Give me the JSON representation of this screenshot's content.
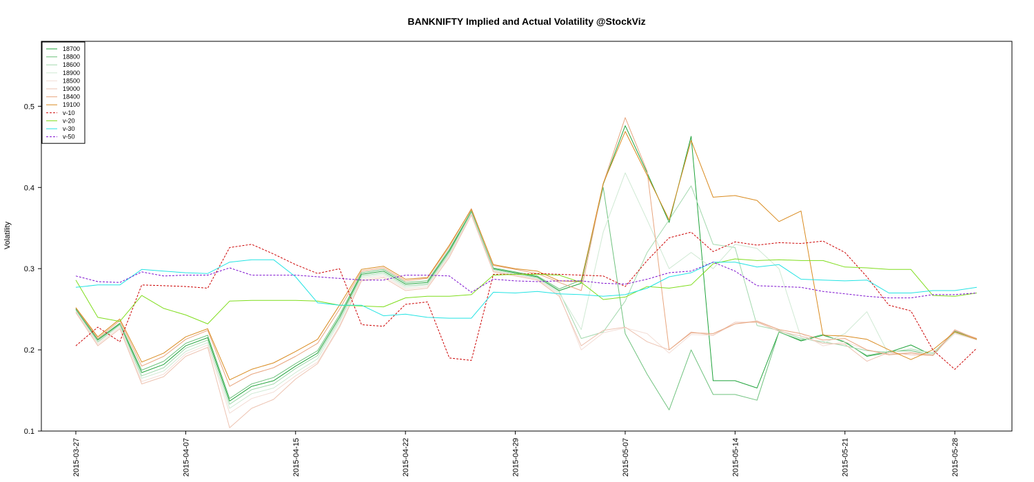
{
  "chart_data": {
    "type": "line",
    "title": "BANKNIFTY Implied and Actual Volatility @StockViz",
    "xlabel": "",
    "ylabel": "Volatility",
    "ylim": [
      0.1,
      0.58
    ],
    "yticks": [
      0.1,
      0.2,
      0.3,
      0.4,
      0.5
    ],
    "legend_position": "top-left",
    "grid": false,
    "x": [
      "2015-03-27",
      "2015-03-30",
      "2015-03-31",
      "2015-04-01",
      "2015-04-06",
      "2015-04-07",
      "2015-04-08",
      "2015-04-09",
      "2015-04-10",
      "2015-04-13",
      "2015-04-15",
      "2015-04-16",
      "2015-04-17",
      "2015-04-20",
      "2015-04-21",
      "2015-04-22",
      "2015-04-23",
      "2015-04-24",
      "2015-04-27",
      "2015-04-28",
      "2015-04-29",
      "2015-04-30",
      "2015-05-04",
      "2015-05-05",
      "2015-05-06",
      "2015-05-07",
      "2015-05-08",
      "2015-05-11",
      "2015-05-12",
      "2015-05-13",
      "2015-05-14",
      "2015-05-15",
      "2015-05-18",
      "2015-05-19",
      "2015-05-20",
      "2015-05-21",
      "2015-05-22",
      "2015-05-25",
      "2015-05-26",
      "2015-05-27",
      "2015-05-28",
      "2015-05-29"
    ],
    "xticks": [
      "2015-03-27",
      "2015-04-07",
      "2015-04-15",
      "2015-04-22",
      "2015-04-29",
      "2015-05-07",
      "2015-05-14",
      "2015-05-21",
      "2015-05-28"
    ],
    "series": [
      {
        "name": "18700",
        "color": "#1fa33a",
        "dash": false,
        "values": [
          0.25,
          0.212,
          0.232,
          0.172,
          0.182,
          0.205,
          0.215,
          0.137,
          0.155,
          0.162,
          0.18,
          0.196,
          0.24,
          0.293,
          0.297,
          0.281,
          0.283,
          0.322,
          0.37,
          0.3,
          0.295,
          0.29,
          0.273,
          0.282,
          0.404,
          0.476,
          0.418,
          0.357,
          0.463,
          0.162,
          0.162,
          0.153,
          0.222,
          0.211,
          0.218,
          0.21,
          0.192,
          0.197,
          0.206,
          0.193,
          0.222,
          0.213
        ]
      },
      {
        "name": "18800",
        "color": "#6fc27e",
        "dash": false,
        "values": [
          0.251,
          0.213,
          0.233,
          0.175,
          0.186,
          0.208,
          0.218,
          0.14,
          0.158,
          0.166,
          0.183,
          0.199,
          0.243,
          0.295,
          0.299,
          0.283,
          0.285,
          0.324,
          0.371,
          0.301,
          0.296,
          0.291,
          0.275,
          0.286,
          0.4,
          0.22,
          0.17,
          0.126,
          0.2,
          0.145,
          0.145,
          0.138,
          0.222,
          0.212,
          0.219,
          0.209,
          0.193,
          0.198,
          0.199,
          0.194,
          0.223,
          0.214
        ]
      },
      {
        "name": "18600",
        "color": "#a2d8ad",
        "dash": false,
        "values": [
          0.249,
          0.21,
          0.231,
          0.168,
          0.178,
          0.202,
          0.212,
          0.133,
          0.151,
          0.158,
          0.177,
          0.193,
          0.237,
          0.291,
          0.295,
          0.279,
          0.281,
          0.32,
          0.369,
          0.299,
          0.294,
          0.289,
          0.272,
          0.214,
          0.222,
          0.26,
          0.32,
          0.36,
          0.402,
          0.33,
          0.326,
          0.23,
          0.224,
          0.214,
          0.21,
          0.205,
          0.199,
          0.197,
          0.201,
          0.196,
          0.222,
          0.213
        ]
      },
      {
        "name": "18900",
        "color": "#cfe9d3",
        "dash": false,
        "values": [
          0.248,
          0.209,
          0.23,
          0.165,
          0.174,
          0.198,
          0.209,
          0.128,
          0.146,
          0.153,
          0.172,
          0.189,
          0.234,
          0.289,
          0.293,
          0.277,
          0.28,
          0.318,
          0.368,
          0.298,
          0.293,
          0.288,
          0.27,
          0.225,
          0.345,
          0.418,
          0.36,
          0.3,
          0.32,
          0.3,
          0.33,
          0.325,
          0.3,
          0.215,
          0.208,
          0.22,
          0.247,
          0.194,
          0.197,
          0.195,
          0.221,
          0.212
        ]
      },
      {
        "name": "18500",
        "color": "#f3ddd5",
        "dash": false,
        "values": [
          0.247,
          0.207,
          0.228,
          0.161,
          0.17,
          0.195,
          0.206,
          0.122,
          0.14,
          0.148,
          0.168,
          0.185,
          0.23,
          0.287,
          0.291,
          0.275,
          0.278,
          0.316,
          0.367,
          0.297,
          0.292,
          0.287,
          0.268,
          0.2,
          0.221,
          0.227,
          0.22,
          0.196,
          0.219,
          0.218,
          0.232,
          0.236,
          0.225,
          0.22,
          0.205,
          0.21,
          0.2,
          0.195,
          0.197,
          0.194,
          0.22,
          0.212
        ]
      },
      {
        "name": "19000",
        "color": "#edc2b0",
        "dash": false,
        "values": [
          0.246,
          0.205,
          0.226,
          0.158,
          0.167,
          0.192,
          0.203,
          0.104,
          0.128,
          0.139,
          0.164,
          0.183,
          0.228,
          0.285,
          0.289,
          0.273,
          0.276,
          0.314,
          0.366,
          0.296,
          0.291,
          0.286,
          0.266,
          0.205,
          0.224,
          0.228,
          0.21,
          0.2,
          0.222,
          0.218,
          0.234,
          0.234,
          0.223,
          0.217,
          0.208,
          0.207,
          0.186,
          0.197,
          0.194,
          0.193,
          0.225,
          0.213
        ]
      },
      {
        "name": "18400",
        "color": "#e8a57e",
        "dash": false,
        "values": [
          0.252,
          0.214,
          0.236,
          0.18,
          0.192,
          0.213,
          0.224,
          0.155,
          0.17,
          0.178,
          0.192,
          0.208,
          0.25,
          0.297,
          0.301,
          0.285,
          0.288,
          0.327,
          0.374,
          0.304,
          0.299,
          0.294,
          0.283,
          0.273,
          0.405,
          0.486,
          0.42,
          0.2,
          0.221,
          0.22,
          0.232,
          0.235,
          0.225,
          0.22,
          0.212,
          0.214,
          0.2,
          0.194,
          0.196,
          0.193,
          0.224,
          0.214
        ]
      },
      {
        "name": "19100",
        "color": "#d98a1e",
        "dash": false,
        "values": [
          0.252,
          0.216,
          0.238,
          0.185,
          0.196,
          0.216,
          0.226,
          0.163,
          0.176,
          0.184,
          0.198,
          0.213,
          0.255,
          0.299,
          0.303,
          0.287,
          0.289,
          0.329,
          0.373,
          0.305,
          0.3,
          0.297,
          0.285,
          0.284,
          0.405,
          0.469,
          0.415,
          0.36,
          0.458,
          0.388,
          0.39,
          0.384,
          0.358,
          0.371,
          0.218,
          0.217,
          0.213,
          0.2,
          0.188,
          0.2,
          0.222,
          0.213
        ]
      },
      {
        "name": "v-10",
        "color": "#cc0000",
        "dash": true,
        "values": [
          0.205,
          0.228,
          0.21,
          0.28,
          0.279,
          0.278,
          0.276,
          0.326,
          0.33,
          0.318,
          0.305,
          0.294,
          0.3,
          0.231,
          0.229,
          0.256,
          0.259,
          0.19,
          0.187,
          0.293,
          0.293,
          0.294,
          0.293,
          0.292,
          0.291,
          0.278,
          0.31,
          0.338,
          0.345,
          0.321,
          0.333,
          0.329,
          0.332,
          0.331,
          0.334,
          0.32,
          0.29,
          0.255,
          0.248,
          0.2,
          0.176,
          0.202
        ]
      },
      {
        "name": "v-20",
        "color": "#7fdd1c",
        "dash": false,
        "values": [
          0.286,
          0.24,
          0.235,
          0.267,
          0.251,
          0.243,
          0.232,
          0.26,
          0.261,
          0.261,
          0.261,
          0.26,
          0.255,
          0.254,
          0.253,
          0.264,
          0.266,
          0.266,
          0.268,
          0.292,
          0.293,
          0.293,
          0.292,
          0.283,
          0.262,
          0.265,
          0.278,
          0.276,
          0.28,
          0.306,
          0.312,
          0.31,
          0.311,
          0.31,
          0.31,
          0.302,
          0.301,
          0.299,
          0.299,
          0.267,
          0.266,
          0.27
        ]
      },
      {
        "name": "v-30",
        "color": "#22e3e3",
        "dash": false,
        "values": [
          0.277,
          0.28,
          0.28,
          0.299,
          0.297,
          0.295,
          0.294,
          0.308,
          0.311,
          0.311,
          0.29,
          0.258,
          0.255,
          0.255,
          0.242,
          0.244,
          0.24,
          0.239,
          0.239,
          0.271,
          0.27,
          0.272,
          0.269,
          0.268,
          0.266,
          0.268,
          0.276,
          0.29,
          0.295,
          0.308,
          0.308,
          0.302,
          0.305,
          0.287,
          0.286,
          0.285,
          0.286,
          0.27,
          0.27,
          0.273,
          0.273,
          0.277
        ]
      },
      {
        "name": "v-50",
        "color": "#7b0cce",
        "dash": true,
        "values": [
          0.291,
          0.284,
          0.283,
          0.296,
          0.291,
          0.292,
          0.292,
          0.301,
          0.292,
          0.292,
          0.292,
          0.29,
          0.288,
          0.286,
          0.286,
          0.292,
          0.292,
          0.291,
          0.271,
          0.287,
          0.285,
          0.284,
          0.285,
          0.285,
          0.282,
          0.281,
          0.287,
          0.295,
          0.297,
          0.308,
          0.297,
          0.279,
          0.278,
          0.277,
          0.272,
          0.269,
          0.266,
          0.264,
          0.264,
          0.268,
          0.268,
          0.27
        ]
      }
    ]
  }
}
